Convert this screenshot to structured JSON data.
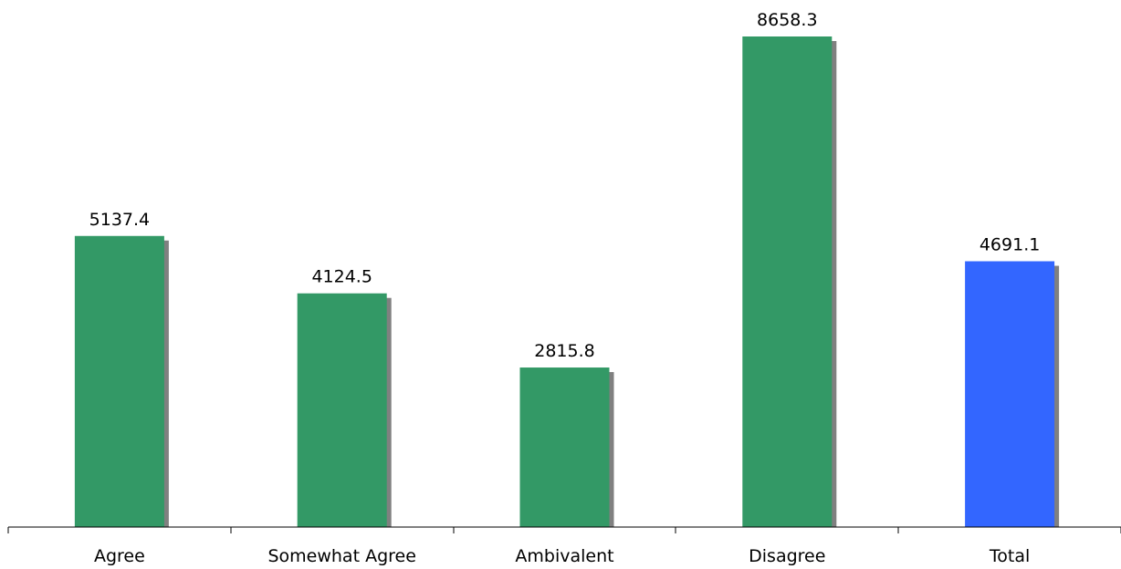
{
  "chart_data": {
    "type": "bar",
    "categories": [
      "Agree",
      "Somewhat Agree",
      "Ambivalent",
      "Disagree",
      "Total"
    ],
    "values": [
      5137.4,
      4124.5,
      2815.8,
      8658.3,
      4691.1
    ],
    "value_labels": [
      "5137.4",
      "4124.5",
      "2815.8",
      "8658.3",
      "4691.1"
    ],
    "colors": [
      "#339966",
      "#339966",
      "#339966",
      "#339966",
      "#3366ff"
    ],
    "shadow_color": "#808080",
    "title": "",
    "xlabel": "",
    "ylabel": "",
    "ylim": [
      0,
      8658.3
    ],
    "grid": false,
    "legend": "none"
  }
}
